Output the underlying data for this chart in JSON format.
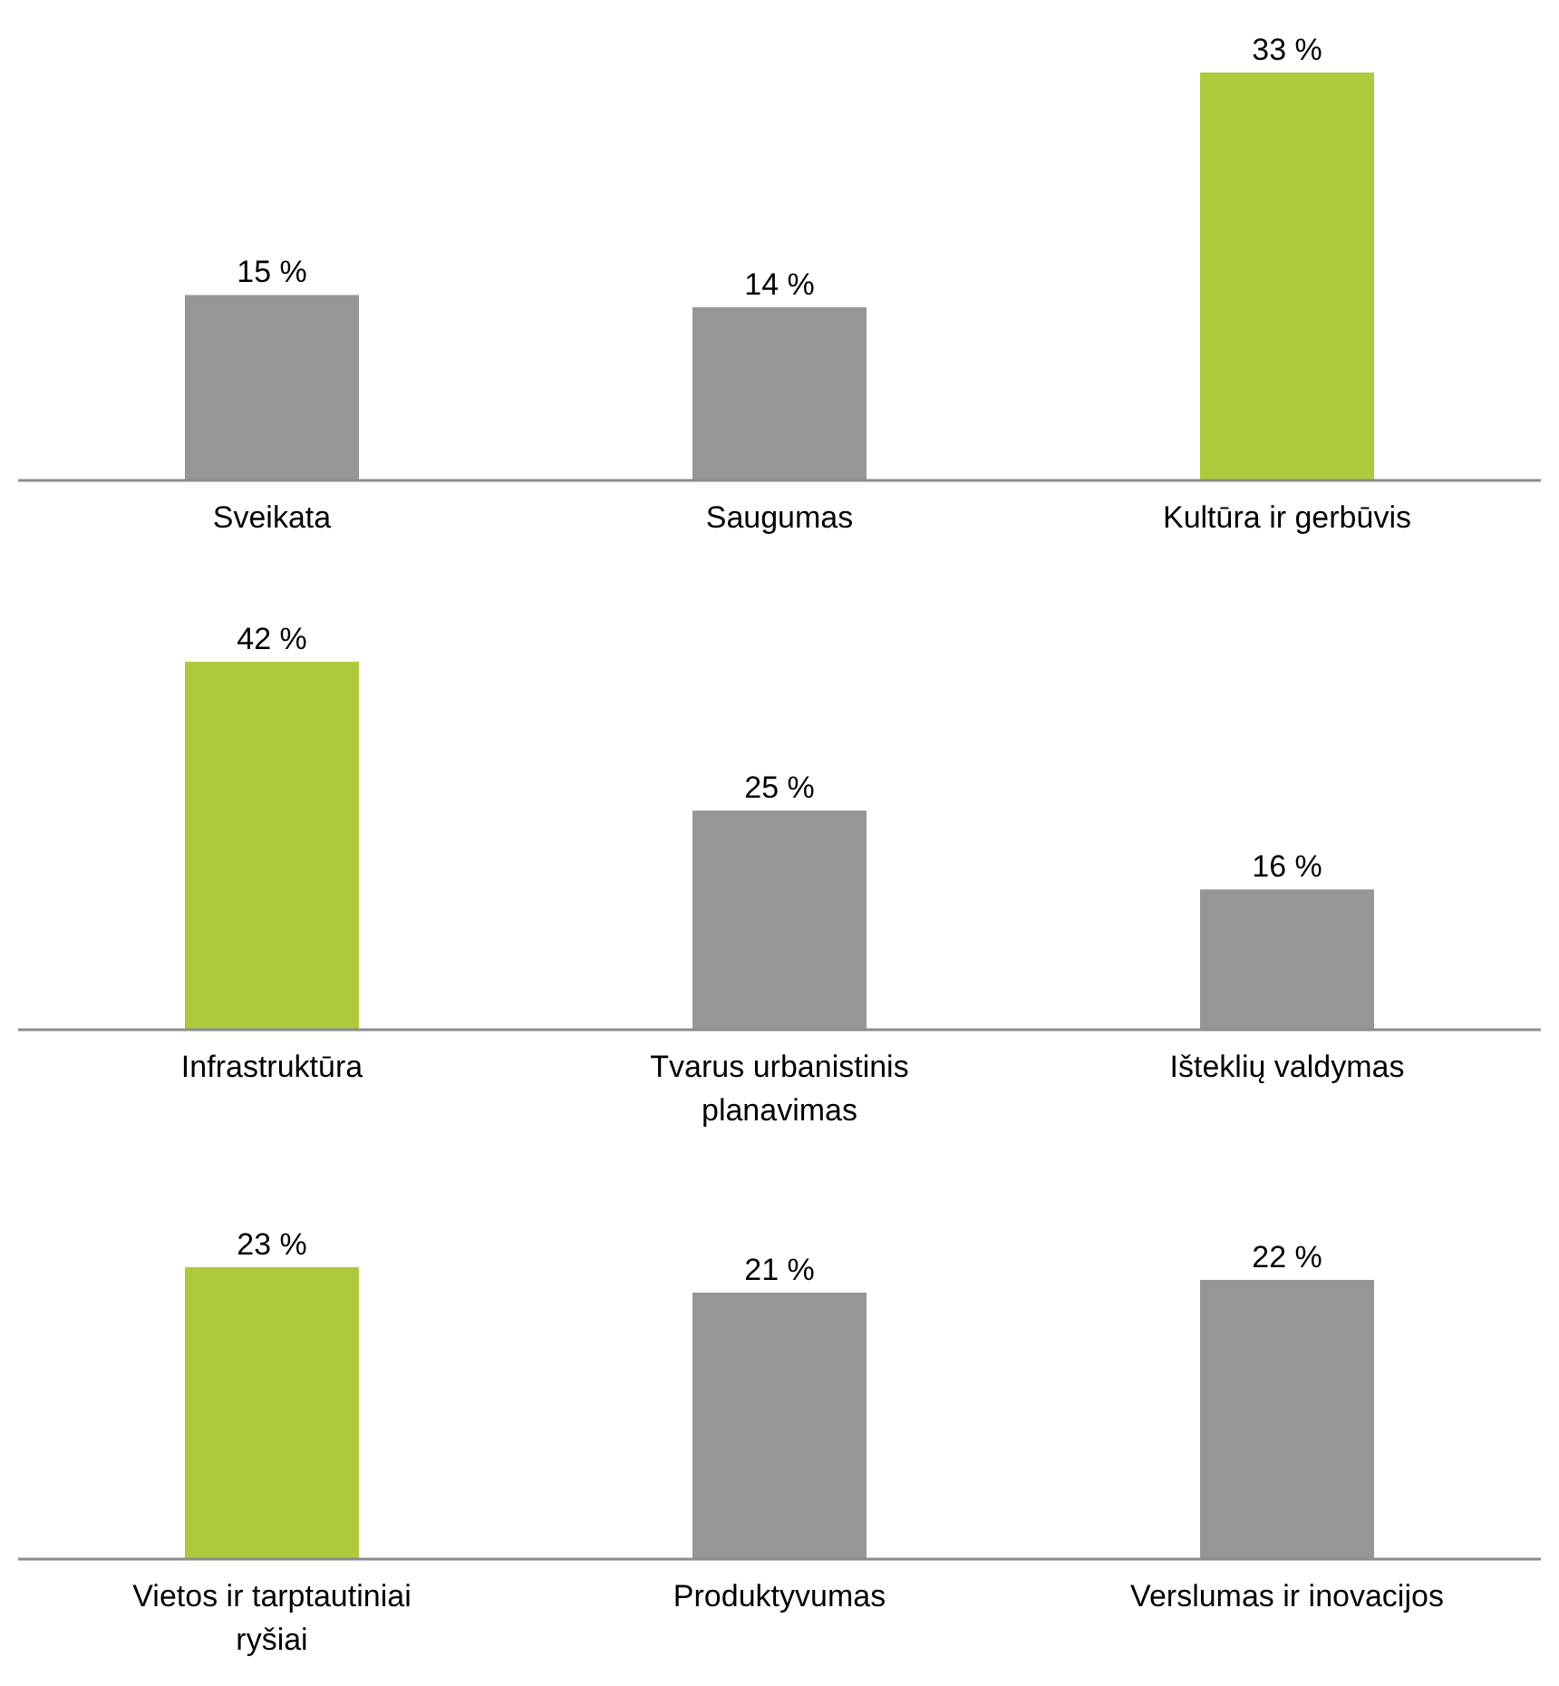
{
  "chart_data": [
    {
      "type": "bar",
      "categories": [
        "Sveikata",
        "Saugumas",
        "Kultūra ir gerbūvis"
      ],
      "values": [
        15,
        14,
        33
      ],
      "colors": [
        "#969696",
        "#969696",
        "#acca3c"
      ],
      "value_labels": [
        "15 %",
        "14 %",
        "33 %"
      ]
    },
    {
      "type": "bar",
      "categories": [
        "Infrastruktūra",
        "Tvarus urbanistinis planavimas",
        "Išteklių valdymas"
      ],
      "values": [
        42,
        25,
        16
      ],
      "colors": [
        "#acca3c",
        "#969696",
        "#969696"
      ],
      "value_labels": [
        "42 %",
        "25 %",
        "16 %"
      ]
    },
    {
      "type": "bar",
      "categories": [
        "Vietos ir tarptautiniai ryšiai",
        "Produktyvumas",
        "Verslumas ir inovacijos"
      ],
      "values": [
        23,
        21,
        22
      ],
      "colors": [
        "#acca3c",
        "#969696",
        "#969696"
      ],
      "value_labels": [
        "23 %",
        "21 %",
        "22 %"
      ]
    }
  ]
}
